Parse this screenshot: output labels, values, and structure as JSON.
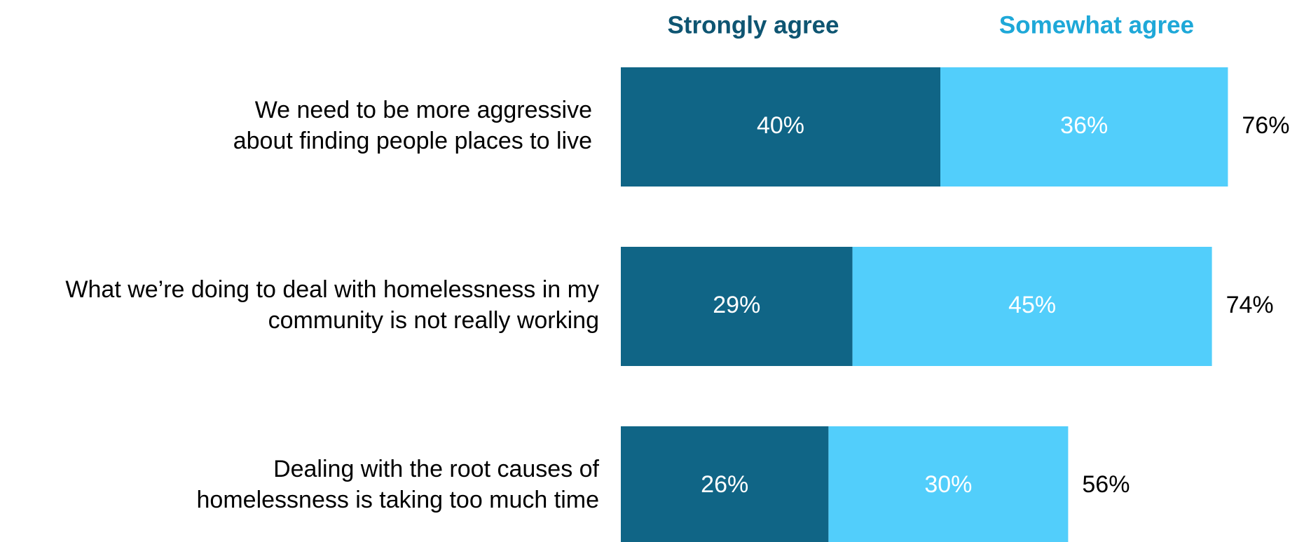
{
  "colors": {
    "strongly": "#106586",
    "somewhat": "#52cefb",
    "strongly_legend": "#0e5572",
    "somewhat_legend": "#1ea8d8"
  },
  "chart_data": {
    "type": "bar",
    "orientation": "horizontal",
    "stacked": true,
    "legend_position": "top",
    "grid": false,
    "categories": [
      [
        "We need to be more aggressive",
        "about finding people places to live"
      ],
      [
        "What we’re doing to deal with homelessness in my",
        "community is not really working"
      ],
      [
        "Dealing with the root causes of",
        "homelessness is taking too much time"
      ]
    ],
    "series": [
      {
        "name": "Strongly agree",
        "values": [
          40,
          29,
          26
        ],
        "labels": [
          "40%",
          "29%",
          "26%"
        ]
      },
      {
        "name": "Somewhat agree",
        "values": [
          36,
          45,
          30
        ],
        "labels": [
          "36%",
          "45%",
          "30%"
        ]
      }
    ],
    "totals": [
      76,
      74,
      56
    ],
    "total_labels": [
      "76%",
      "74%",
      "56%"
    ],
    "xlim": [
      0,
      100
    ]
  }
}
